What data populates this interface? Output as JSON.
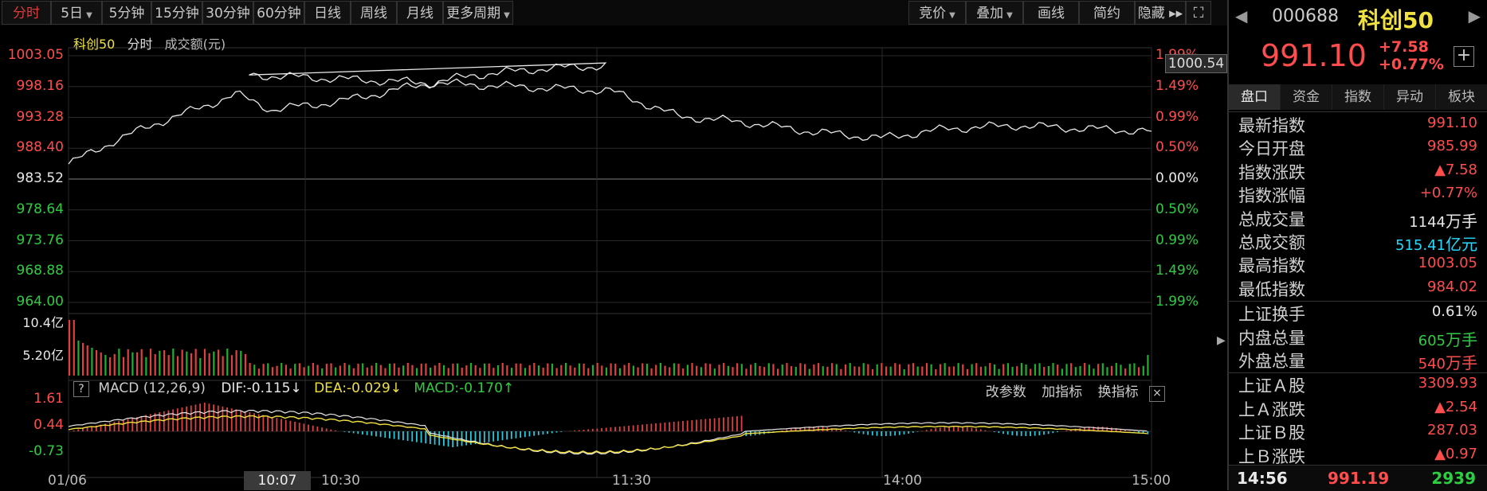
{
  "toolbar": {
    "left": [
      {
        "label": "分时",
        "active": true
      },
      {
        "label": "5日",
        "caret": true
      },
      {
        "label": "5分钟"
      },
      {
        "label": "15分钟"
      },
      {
        "label": "30分钟"
      },
      {
        "label": "60分钟"
      },
      {
        "label": "日线"
      },
      {
        "label": "周线"
      },
      {
        "label": "月线"
      },
      {
        "label": "更多周期",
        "caret": true
      }
    ],
    "right": [
      {
        "label": "竞价",
        "caret": true
      },
      {
        "label": "叠加",
        "caret": true
      },
      {
        "label": "画线"
      },
      {
        "label": "简约"
      },
      {
        "label": "隐藏 ▸▸"
      }
    ],
    "fullscreen_icon": "fullscreen-icon"
  },
  "chart_legend": {
    "name": "科创50",
    "mode": "分时",
    "volume_label": "成交额(元)"
  },
  "price_axis_left": [
    "1003.05",
    "998.16",
    "993.28",
    "988.40",
    "983.52",
    "978.64",
    "973.76",
    "968.88",
    "964.00"
  ],
  "price_axis_right": [
    "1.99%",
    "1.49%",
    "0.99%",
    "0.50%",
    "0.00%",
    "0.50%",
    "0.99%",
    "1.49%",
    "1.99%"
  ],
  "price_flag": "1000.54",
  "volume_axis": [
    "10.4亿",
    "5.20亿"
  ],
  "macd_header": {
    "help": "?",
    "title": "MACD (12,26,9)",
    "dif": "DIF:-0.115↓",
    "dea": "DEA:-0.029↓",
    "macd": "MACD:-0.170↑",
    "btn_params": "改参数",
    "btn_add": "加指标",
    "btn_switch": "换指标",
    "close_icon": "close-icon"
  },
  "macd_axis": [
    "1.61",
    "0.44",
    "-0.73"
  ],
  "time_axis": [
    "01/06",
    "10:30",
    "11:30",
    "14:00",
    "15:00"
  ],
  "cursor_time": "10:07",
  "colors": {
    "up": "#ff4d4d",
    "down": "#2ecc40",
    "line": "#e8e8e8",
    "dea": "#f0e040",
    "cyan": "#26d9ff"
  },
  "chart_data": {
    "type": "line",
    "title": "",
    "xlabel": "",
    "ylabel": "",
    "prev_close": 983.52,
    "ylim": [
      964.0,
      1003.05
    ],
    "x_ticks": [
      "01/06",
      "10:30",
      "11:30",
      "14:00",
      "15:00"
    ],
    "series": [
      {
        "name": "科创50",
        "x": [
          "09:30",
          "09:40",
          "09:50",
          "10:00",
          "10:07",
          "10:15",
          "10:30",
          "10:45",
          "11:00",
          "11:15",
          "11:30",
          "11:40",
          "13:00",
          "13:15",
          "13:30",
          "13:45",
          "14:00",
          "14:15",
          "14:30",
          "14:45",
          "15:00"
        ],
        "values": [
          985.9,
          989.5,
          992.5,
          995.0,
          997.0,
          994.5,
          995.8,
          998.0,
          1000.0,
          1001.0,
          1001.5,
          1000.0,
          997.5,
          993.5,
          992.5,
          991.0,
          990.0,
          991.5,
          992.0,
          991.5,
          991.1
        ]
      }
    ]
  },
  "panel": {
    "code": "000688",
    "name": "科创50",
    "price": "991.10",
    "change": "+7.58",
    "change_pct": "+0.77%",
    "tabs": [
      "盘口",
      "资金",
      "指数",
      "异动",
      "板块"
    ],
    "rows": [
      {
        "label": "最新指数",
        "value": "991.10",
        "color": "red"
      },
      {
        "label": "今日开盘",
        "value": "985.99",
        "color": "red"
      },
      {
        "label": "指数涨跌",
        "value": "▲7.58",
        "color": "red"
      },
      {
        "label": "指数涨幅",
        "value": "+0.77%",
        "color": "red"
      },
      {
        "label": "总成交量",
        "value": "1144",
        "unit": "万手",
        "color": "white"
      },
      {
        "label": "总成交额",
        "value": "515.41",
        "unit": "亿元",
        "color": "cyan"
      },
      {
        "label": "最高指数",
        "value": "1003.05",
        "color": "red"
      },
      {
        "label": "最低指数",
        "value": "984.02",
        "color": "red"
      },
      {
        "label": "上证换手",
        "value": "0.61%",
        "color": "white"
      },
      {
        "label": "内盘总量",
        "value": "605",
        "unit": "万手",
        "color": "green"
      },
      {
        "label": "外盘总量",
        "value": "540",
        "unit": "万手",
        "color": "red"
      },
      {
        "label": "上证Ａ股",
        "value": "3309.93",
        "color": "red"
      },
      {
        "label": "上Ａ涨跌",
        "value": "▲2.54",
        "color": "red"
      },
      {
        "label": "上证Ｂ股",
        "value": "287.03",
        "color": "red"
      },
      {
        "label": "上Ｂ涨跌",
        "value": "▲0.97",
        "color": "red"
      }
    ],
    "tick": {
      "time": "14:56",
      "price": "991.19",
      "volume": "2939"
    }
  }
}
